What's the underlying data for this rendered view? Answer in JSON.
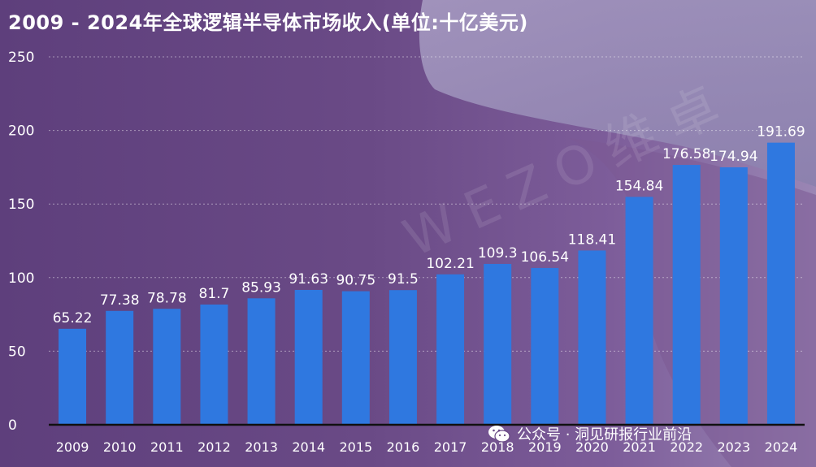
{
  "title": "2009 - 2024年全球逻辑半导体市场收入(单位:十亿美元)",
  "watermark": "WEZO维卓",
  "credit": "公众号 · 洞见研报行业前沿",
  "colors": {
    "bar": "#2f78e0",
    "text": "#ffffff",
    "grid": "rgba(255,255,255,0.45)",
    "axis": "#111111"
  },
  "chart_data": {
    "type": "bar",
    "categories": [
      "2009",
      "2010",
      "2011",
      "2012",
      "2013",
      "2014",
      "2015",
      "2016",
      "2017",
      "2018",
      "2019",
      "2020",
      "2021",
      "2022",
      "2023",
      "2024"
    ],
    "values": [
      65.22,
      77.38,
      78.78,
      81.7,
      85.93,
      91.63,
      90.75,
      91.5,
      102.21,
      109.3,
      106.54,
      118.41,
      154.84,
      176.58,
      174.94,
      191.69
    ],
    "value_labels": [
      "65.22",
      "77.38",
      "78.78",
      "81.7",
      "85.93",
      "91.63",
      "90.75",
      "91.5",
      "102.21",
      "109.3",
      "106.54",
      "118.41",
      "154.84",
      "176.58",
      "174.94",
      "191.69"
    ],
    "ylim": [
      0,
      250
    ],
    "yticks": [
      "0",
      "50",
      "100",
      "150",
      "200",
      "250"
    ],
    "grid": true,
    "xlabel": "",
    "ylabel": ""
  }
}
